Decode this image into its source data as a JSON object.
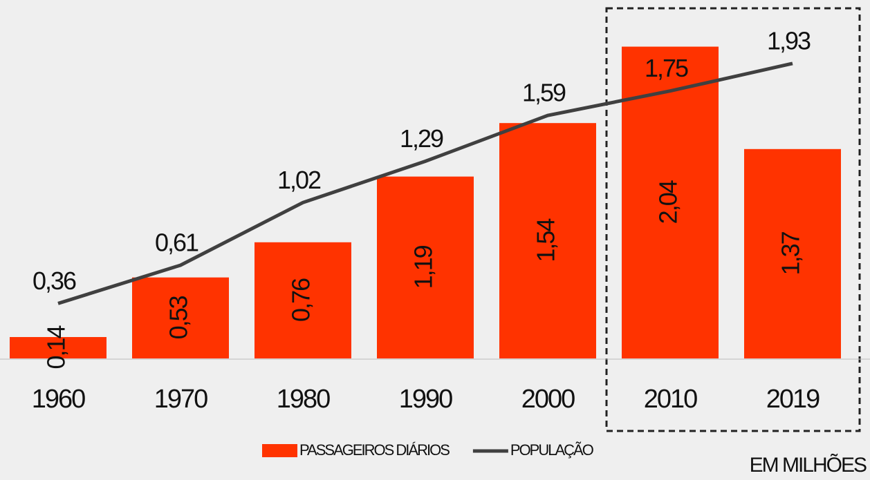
{
  "chart_data": {
    "type": "bar-line",
    "categories": [
      "1960",
      "1970",
      "1980",
      "1990",
      "2000",
      "2010",
      "2019"
    ],
    "series": [
      {
        "name": "PASSAGEIROS DIÁRIOS",
        "type": "bar",
        "color": "#ff3300",
        "values": [
          0.14,
          0.53,
          0.76,
          1.19,
          1.54,
          2.04,
          1.37
        ],
        "value_labels": [
          "0,14",
          "0,53",
          "0,76",
          "1,19",
          "1,54",
          "2,04",
          "1,37"
        ]
      },
      {
        "name": "POPULAÇÃO",
        "type": "line",
        "color": "#404040",
        "values": [
          0.36,
          0.61,
          1.02,
          1.29,
          1.59,
          1.75,
          1.93
        ],
        "value_labels": [
          "0,36",
          "0,61",
          "1,02",
          "1,29",
          "1,59",
          "1,75",
          "1,93"
        ]
      }
    ],
    "ylim": [
      0,
      2.3
    ],
    "annotation": "EM MILHÕES"
  }
}
